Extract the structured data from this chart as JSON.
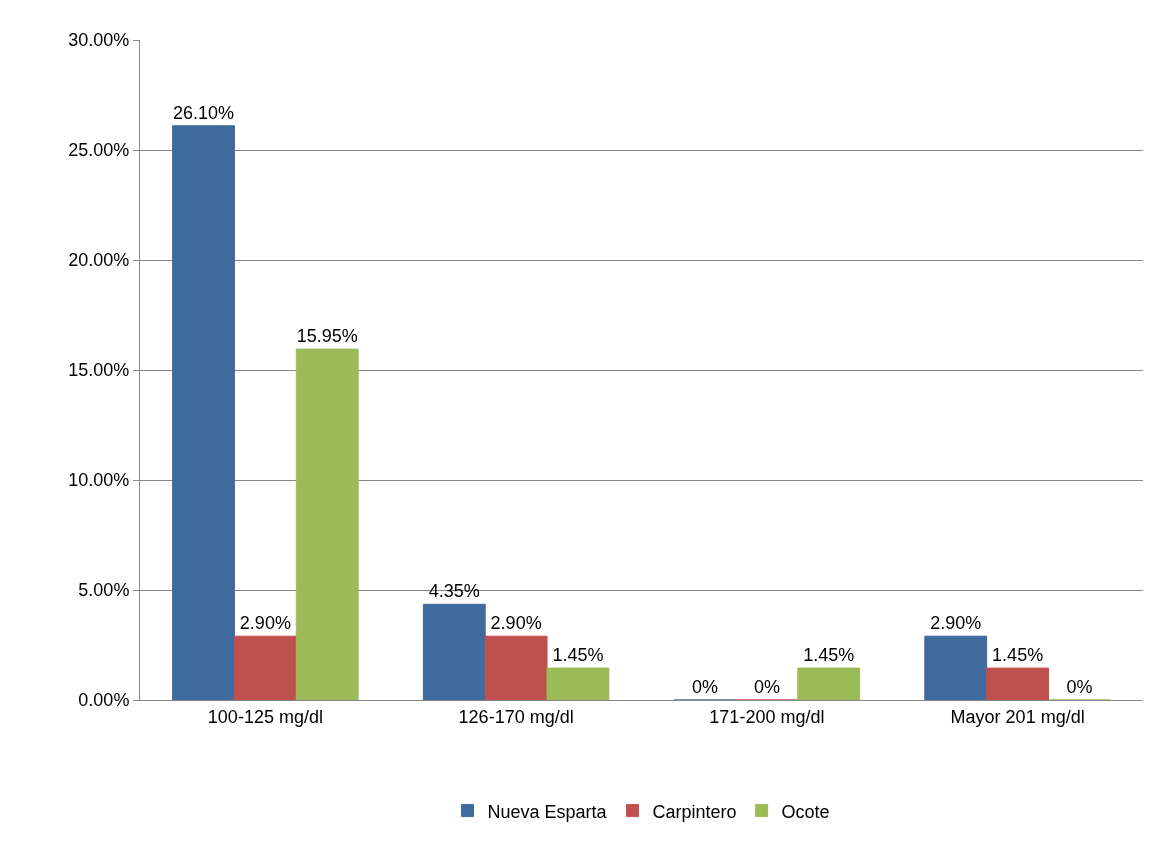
{
  "chart_data": {
    "type": "bar",
    "categories": [
      "100-125 mg/dl",
      "126-170 mg/dl",
      "171-200 mg/dl",
      "Mayor 201 mg/dl"
    ],
    "series": [
      {
        "name": "Nueva Esparta",
        "color": "#3f6a9e",
        "values": [
          26.1,
          4.35,
          0,
          2.9
        ],
        "value_labels": [
          "26.10%",
          "4.35%",
          "0%",
          "2.90%"
        ]
      },
      {
        "name": "Carpintero",
        "color": "#c0504d",
        "values": [
          2.9,
          2.9,
          0,
          1.45
        ],
        "value_labels": [
          "2.90%",
          "2.90%",
          "0%",
          "1.45%"
        ]
      },
      {
        "name": "Ocote",
        "color": "#9bbb59",
        "values": [
          15.95,
          1.45,
          1.45,
          0
        ],
        "value_labels": [
          "15.95%",
          "1.45%",
          "1.45%",
          "0%"
        ]
      }
    ],
    "ylim": [
      0,
      30
    ],
    "yticks": [
      {
        "value": 0,
        "label": "0.00%"
      },
      {
        "value": 5,
        "label": "5.00%"
      },
      {
        "value": 10,
        "label": "10.00%"
      },
      {
        "value": 15,
        "label": "15.00%"
      },
      {
        "value": 20,
        "label": "20.00%"
      },
      {
        "value": 25,
        "label": "25.00%"
      },
      {
        "value": 30,
        "label": "30.00%"
      }
    ],
    "grid": "y",
    "legend": "bottom"
  }
}
